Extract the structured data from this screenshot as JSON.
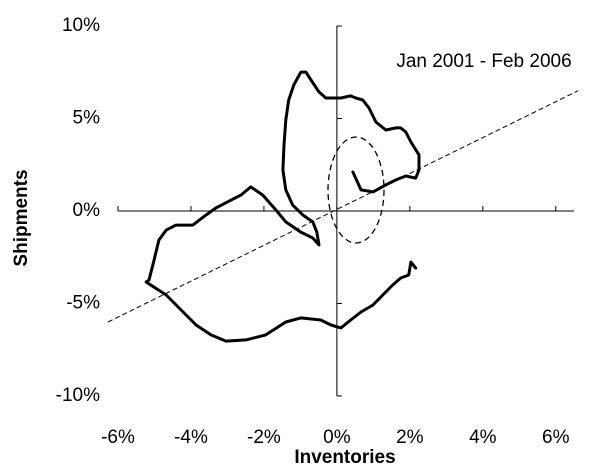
{
  "chart_data": {
    "type": "line",
    "annotation": "Jan 2001 - Feb 2006",
    "x_label": "Inventories",
    "y_label": "Shipments",
    "color": "#000000",
    "x": [
      0.44,
      0.66,
      0.99,
      1.34,
      1.62,
      1.89,
      2.16,
      2.25,
      2.25,
      2.03,
      1.89,
      1.75,
      1.62,
      1.34,
      1.07,
      0.88,
      0.71,
      0.52,
      0.38,
      0.11,
      -0.3,
      -0.49,
      -0.71,
      -0.85,
      -0.99,
      -1.18,
      -1.32,
      -1.4,
      -1.45,
      -1.48,
      -1.4,
      -1.21,
      -0.93,
      -0.66,
      -0.55,
      -0.49,
      -0.66,
      -0.99,
      -1.4,
      -1.67,
      -2.03,
      -2.36,
      -2.63,
      -2.9,
      -3.32,
      -3.59,
      -3.95,
      -4.41,
      -4.68,
      -4.88,
      -5.01,
      -5.15,
      -5.23,
      -4.68,
      -4.27,
      -3.86,
      -3.45,
      -3.04,
      -2.49,
      -1.95,
      -1.4,
      -0.99,
      -0.44,
      -0.16,
      0.11,
      0.38,
      0.66,
      0.99,
      1.26,
      1.53,
      1.75,
      1.97,
      2.03,
      2.16
    ],
    "values": [
      2.11,
      1.14,
      1.03,
      1.41,
      1.68,
      1.89,
      1.78,
      2.22,
      3.03,
      3.73,
      4.27,
      4.49,
      4.49,
      4.38,
      4.81,
      5.57,
      6.0,
      6.11,
      6.22,
      6.11,
      6.11,
      6.43,
      7.08,
      7.51,
      7.51,
      6.81,
      6.0,
      4.92,
      3.57,
      2.22,
      1.14,
      0.32,
      -0.22,
      -0.59,
      -1.14,
      -1.84,
      -1.46,
      -1.14,
      -0.59,
      0.05,
      0.86,
      1.3,
      0.86,
      0.59,
      0.16,
      -0.22,
      -0.76,
      -0.76,
      -1.03,
      -1.57,
      -2.65,
      -3.73,
      -3.84,
      -4.54,
      -5.35,
      -6.16,
      -6.7,
      -7.03,
      -6.97,
      -6.7,
      -6.0,
      -5.78,
      -5.89,
      -6.16,
      -6.32,
      -5.89,
      -5.46,
      -5.08,
      -4.54,
      -4.0,
      -3.62,
      -3.46,
      -2.76,
      -3.08
    ],
    "xlim": [
      -6,
      6.5
    ],
    "ylim": [
      -10,
      10
    ],
    "xticks": [
      {
        "value": -6,
        "label": "-6%"
      },
      {
        "value": -4,
        "label": "-4%"
      },
      {
        "value": -2,
        "label": "-2%"
      },
      {
        "value": 0,
        "label": "0%"
      },
      {
        "value": 2,
        "label": "2%"
      },
      {
        "value": 4,
        "label": "4%"
      },
      {
        "value": 6,
        "label": "6%"
      }
    ],
    "yticks": [
      {
        "value": -10,
        "label": "-10%"
      },
      {
        "value": -5,
        "label": "-5%"
      },
      {
        "value": 0,
        "label": "0%"
      },
      {
        "value": 5,
        "label": "5%"
      },
      {
        "value": 10,
        "label": "10%"
      }
    ]
  }
}
